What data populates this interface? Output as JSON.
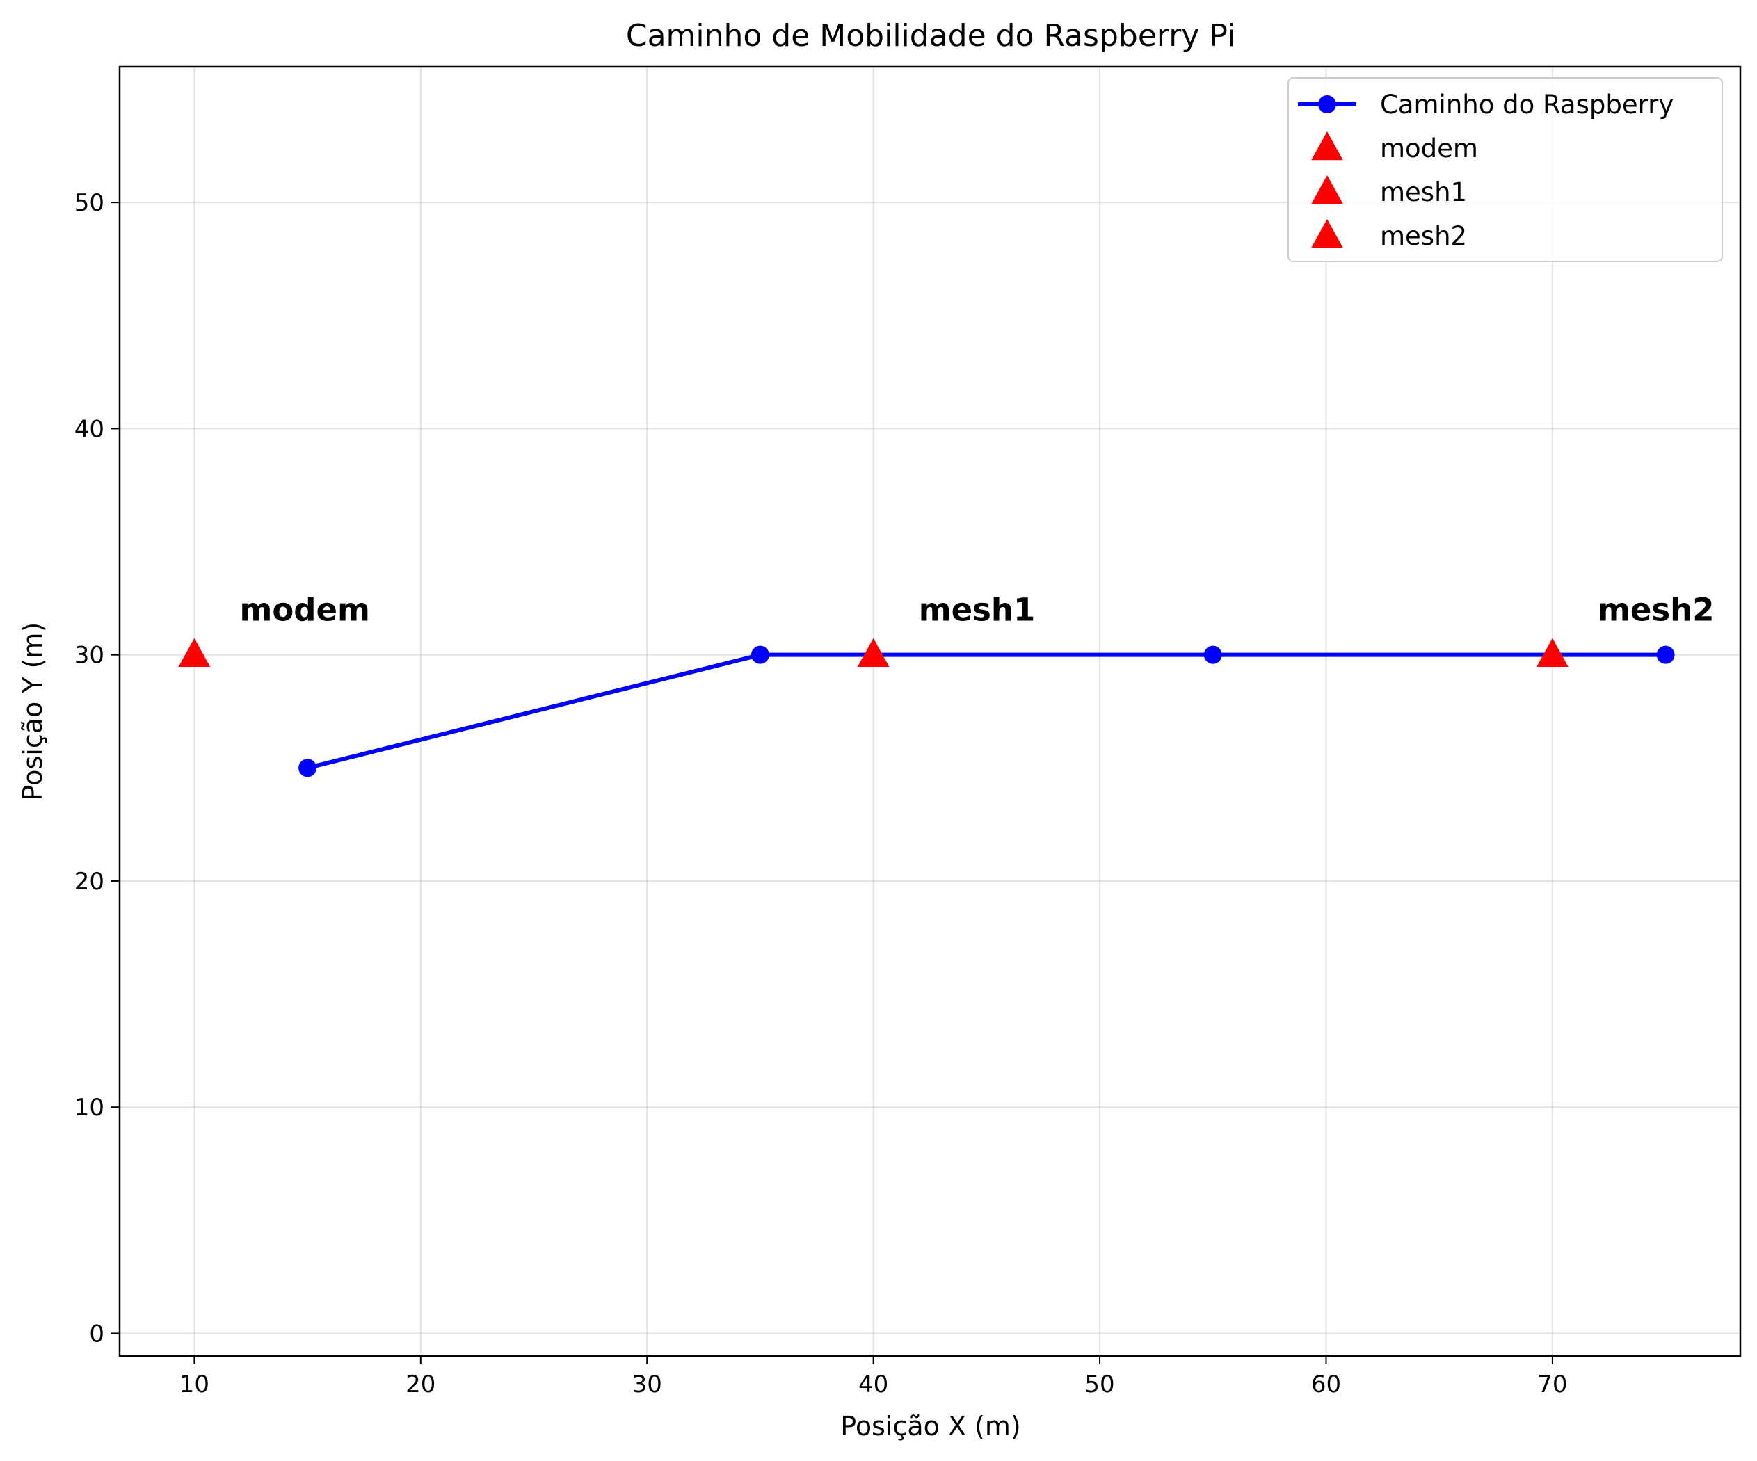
{
  "chart_data": {
    "type": "line",
    "title": "Caminho de Mobilidade do Raspberry Pi",
    "xlabel": "Posição X (m)",
    "ylabel": "Posição Y (m)",
    "xlim": [
      6.7,
      78.3
    ],
    "ylim": [
      -1.0,
      56.0
    ],
    "xticks": [
      10,
      20,
      30,
      40,
      50,
      60,
      70
    ],
    "yticks": [
      0,
      10,
      20,
      30,
      40,
      50
    ],
    "grid": true,
    "legend_position": "top-right",
    "series": [
      {
        "name": "Caminho do Raspberry",
        "kind": "line-marker",
        "color": "#0000ff",
        "x": [
          15,
          35,
          55,
          75
        ],
        "y": [
          25,
          30,
          30,
          30
        ]
      }
    ],
    "points": [
      {
        "name": "modem",
        "x": 10,
        "y": 30,
        "color": "#ff0000",
        "marker": "triangle"
      },
      {
        "name": "mesh1",
        "x": 40,
        "y": 30,
        "color": "#ff0000",
        "marker": "triangle"
      },
      {
        "name": "mesh2",
        "x": 70,
        "y": 30,
        "color": "#ff0000",
        "marker": "triangle"
      }
    ],
    "annotations": [
      {
        "text": "modem",
        "x": 12,
        "y": 32
      },
      {
        "text": "mesh1",
        "x": 42,
        "y": 32
      },
      {
        "text": "mesh2",
        "x": 72,
        "y": 32
      }
    ]
  }
}
